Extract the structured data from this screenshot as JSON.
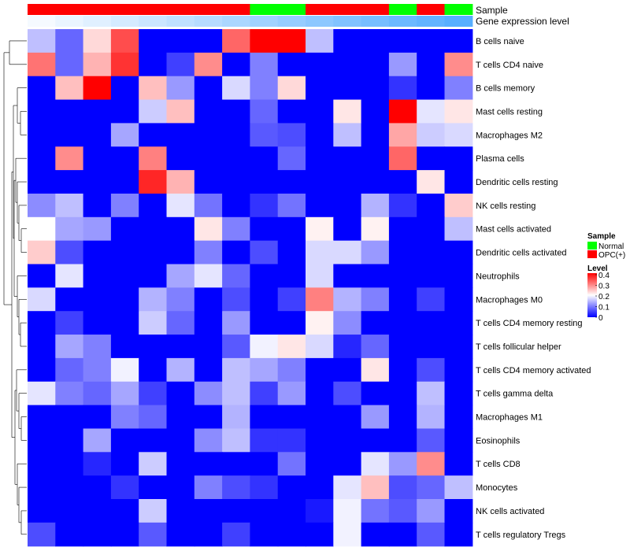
{
  "chart_data": {
    "type": "heatmap",
    "annotation_labels": {
      "sample": "Sample",
      "gene_expression": "Gene expression level"
    },
    "sample_groups": [
      "OPC(+)",
      "OPC(+)",
      "OPC(+)",
      "OPC(+)",
      "OPC(+)",
      "OPC(+)",
      "OPC(+)",
      "OPC(+)",
      "Normal",
      "Normal",
      "OPC(+)",
      "OPC(+)",
      "OPC(+)",
      "Normal",
      "OPC(+)",
      "Normal"
    ],
    "rows": [
      "B cells naive",
      "T cells CD4 naive",
      "B cells memory",
      "Mast cells resting",
      "Macrophages M2",
      "Plasma cells",
      "Dendritic cells resting",
      "NK cells resting",
      "Mast cells activated",
      "Dendritic cells activated",
      "Neutrophils",
      "Macrophages M0",
      "T cells CD4 memory resting",
      "T cells follicular helper",
      "T cells CD4 memory activated",
      "T cells gamma delta",
      "Macrophages M1",
      "Eosinophils",
      "T cells CD8",
      "Monocytes",
      "NK cells activated",
      "T cells regulatory  Tregs"
    ],
    "values": [
      [
        0.15,
        0.08,
        0.23,
        0.34,
        0,
        0,
        0,
        0.32,
        0.4,
        0.4,
        0.15,
        0,
        0,
        0,
        0,
        0
      ],
      [
        0.31,
        0.08,
        0.26,
        0.36,
        0,
        0.05,
        0.29,
        0,
        0.1,
        0,
        0,
        0,
        0,
        0.12,
        0,
        0.29
      ],
      [
        0,
        0.25,
        0.4,
        0,
        0.25,
        0.12,
        0,
        0.17,
        0.1,
        0.23,
        0,
        0,
        0,
        0.04,
        0,
        0.1
      ],
      [
        0,
        0,
        0,
        0,
        0.16,
        0.25,
        0,
        0,
        0.08,
        0,
        0,
        0.22,
        0,
        0.4,
        0.18,
        0.22
      ],
      [
        0,
        0,
        0,
        0.13,
        0,
        0,
        0,
        0,
        0.07,
        0.06,
        0,
        0.15,
        0,
        0.27,
        0.16,
        0.17
      ],
      [
        0,
        0.29,
        0,
        0,
        0.3,
        0,
        0,
        0,
        0,
        0.08,
        0,
        0,
        0,
        0.32,
        0,
        0
      ],
      [
        0,
        0,
        0,
        0,
        0.37,
        0.26,
        0,
        0,
        0,
        0,
        0,
        0,
        0,
        0,
        0.22,
        0
      ],
      [
        0.11,
        0.15,
        0,
        0.1,
        0,
        0.18,
        0.09,
        0,
        0.04,
        0.09,
        0,
        0,
        0.14,
        0.04,
        0,
        0.24
      ],
      [
        0.2,
        0.13,
        0.12,
        0,
        0,
        0,
        0.22,
        0.1,
        0,
        0,
        0.21,
        0,
        0.21,
        0,
        0,
        0.15
      ],
      [
        0.24,
        0.06,
        0,
        0,
        0,
        0,
        0.1,
        0,
        0.06,
        0,
        0.17,
        0.17,
        0.12,
        0,
        0,
        0
      ],
      [
        0,
        0.18,
        0,
        0,
        0,
        0.13,
        0.18,
        0.08,
        0,
        0,
        0.17,
        0,
        0,
        0,
        0,
        0
      ],
      [
        0.17,
        0,
        0,
        0,
        0.14,
        0.1,
        0,
        0.06,
        0,
        0.05,
        0.3,
        0.14,
        0.1,
        0,
        0.05,
        0
      ],
      [
        0,
        0.05,
        0,
        0,
        0.16,
        0.08,
        0,
        0.12,
        0,
        0,
        0.21,
        0.11,
        0,
        0,
        0,
        0
      ],
      [
        0,
        0.13,
        0.1,
        0,
        0,
        0,
        0,
        0.07,
        0.19,
        0.22,
        0.17,
        0.03,
        0.08,
        0,
        0,
        0
      ],
      [
        0,
        0.08,
        0.1,
        0.19,
        0,
        0.14,
        0,
        0.15,
        0.13,
        0.1,
        0,
        0,
        0.22,
        0,
        0.06,
        0
      ],
      [
        0.18,
        0.1,
        0.08,
        0.13,
        0.05,
        0,
        0.11,
        0.15,
        0.05,
        0.12,
        0,
        0.06,
        0,
        0,
        0.15,
        0
      ],
      [
        0,
        0,
        0,
        0.1,
        0.08,
        0,
        0,
        0.14,
        0,
        0,
        0,
        0,
        0.12,
        0,
        0.14,
        0
      ],
      [
        0,
        0,
        0.13,
        0,
        0,
        0,
        0.11,
        0.15,
        0.04,
        0.04,
        0,
        0,
        0,
        0,
        0.07,
        0
      ],
      [
        0,
        0,
        0.03,
        0,
        0.16,
        0,
        0,
        0,
        0,
        0.09,
        0,
        0,
        0.18,
        0.12,
        0.29,
        0
      ],
      [
        0,
        0,
        0,
        0.04,
        0,
        0,
        0.1,
        0.06,
        0.04,
        0,
        0,
        0.18,
        0.25,
        0.06,
        0.08,
        0.15
      ],
      [
        0,
        0,
        0,
        0,
        0.16,
        0,
        0,
        0,
        0,
        0,
        0.02,
        0.19,
        0.09,
        0.07,
        0.12,
        0
      ],
      [
        0.06,
        0,
        0,
        0,
        0.07,
        0,
        0,
        0.05,
        0,
        0,
        0,
        0.19,
        0,
        0,
        0.07,
        0
      ]
    ],
    "scale": {
      "min": 0,
      "max": 0.4
    },
    "legend": {
      "sample_title": "Sample",
      "sample_entries": [
        {
          "label": "Normal",
          "color": "#00ff00"
        },
        {
          "label": "OPC(+)",
          "color": "#ff0000"
        }
      ],
      "level_title": "Level",
      "level_ticks": [
        "0.4",
        "0.3",
        "0.2",
        "0.1",
        "0"
      ],
      "level_tick_values": [
        0.4,
        0.3,
        0.2,
        0.1,
        0
      ]
    },
    "colors": {
      "low": "#0000ff",
      "mid": "#ffffff",
      "high": "#ff0000",
      "normal": "#00ff00",
      "opc": "#ff0000"
    }
  }
}
